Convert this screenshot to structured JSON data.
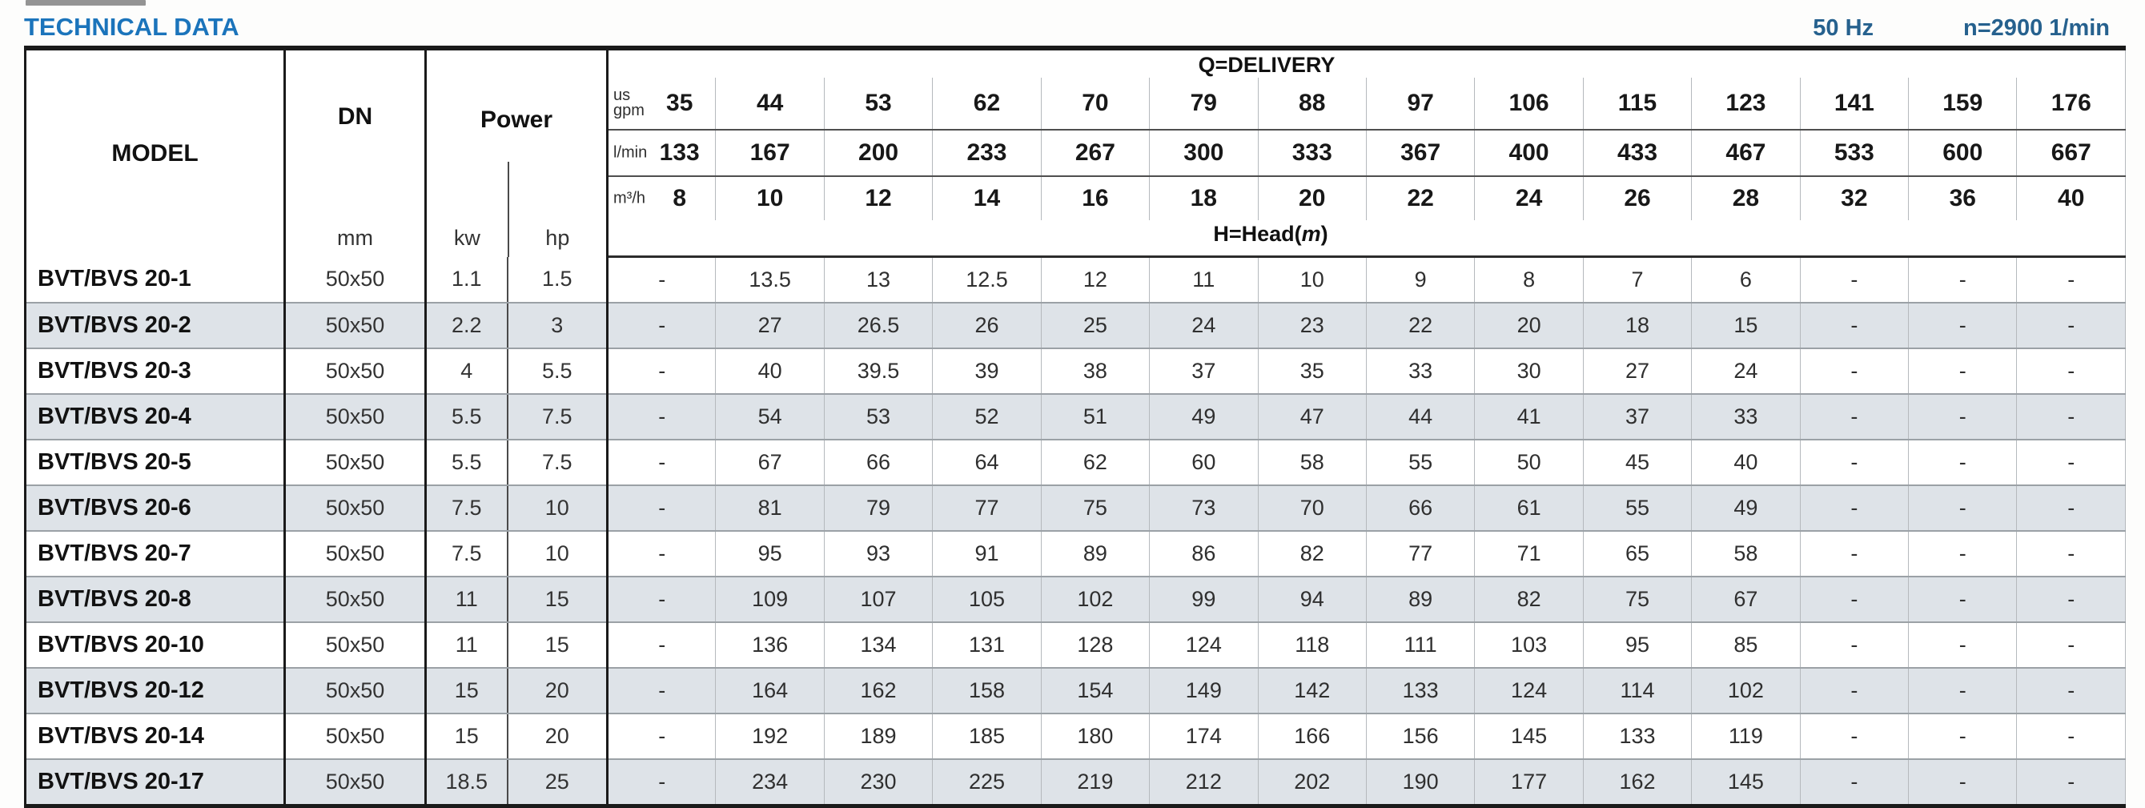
{
  "colors": {
    "title_accent": "#1b74bb",
    "subtitle_accent": "#26618e",
    "row_stripe": "#dee3e8"
  },
  "header": {
    "title": "TECHNICAL DATA",
    "frequency": "50 Hz",
    "speed": "n=2900 1/min"
  },
  "table": {
    "model_label": "MODEL",
    "dn_label": "DN",
    "dn_unit": "mm",
    "power_label": "Power",
    "power_unit_kw": "kw",
    "power_unit_hp": "hp",
    "delivery_label": "Q=DELIVERY",
    "head_prefix": "H=Head(",
    "head_italic": "m",
    "head_suffix": ")",
    "unit_rows": [
      {
        "key": "us-gpm",
        "unit_top": "us",
        "unit": "gpm",
        "values": [
          "35",
          "44",
          "53",
          "62",
          "70",
          "79",
          "88",
          "97",
          "106",
          "115",
          "123",
          "141",
          "159",
          "176"
        ]
      },
      {
        "key": "l-min",
        "unit_top": "",
        "unit": "l/min",
        "values": [
          "133",
          "167",
          "200",
          "233",
          "267",
          "300",
          "333",
          "367",
          "400",
          "433",
          "467",
          "533",
          "600",
          "667"
        ]
      },
      {
        "key": "m3-h",
        "unit_top": "",
        "unit": "m³/h",
        "values": [
          "8",
          "10",
          "12",
          "14",
          "16",
          "18",
          "20",
          "22",
          "24",
          "26",
          "28",
          "32",
          "36",
          "40"
        ]
      }
    ],
    "rows": [
      {
        "model": "BVT/BVS 20-1",
        "dn": "50x50",
        "kw": "1.1",
        "hp": "1.5",
        "heads": [
          "-",
          "13.5",
          "13",
          "12.5",
          "12",
          "11",
          "10",
          "9",
          "8",
          "7",
          "6",
          "-",
          "-",
          "-"
        ]
      },
      {
        "model": "BVT/BVS 20-2",
        "dn": "50x50",
        "kw": "2.2",
        "hp": "3",
        "heads": [
          "-",
          "27",
          "26.5",
          "26",
          "25",
          "24",
          "23",
          "22",
          "20",
          "18",
          "15",
          "-",
          "-",
          "-"
        ]
      },
      {
        "model": "BVT/BVS 20-3",
        "dn": "50x50",
        "kw": "4",
        "hp": "5.5",
        "heads": [
          "-",
          "40",
          "39.5",
          "39",
          "38",
          "37",
          "35",
          "33",
          "30",
          "27",
          "24",
          "-",
          "-",
          "-"
        ]
      },
      {
        "model": "BVT/BVS 20-4",
        "dn": "50x50",
        "kw": "5.5",
        "hp": "7.5",
        "heads": [
          "-",
          "54",
          "53",
          "52",
          "51",
          "49",
          "47",
          "44",
          "41",
          "37",
          "33",
          "-",
          "-",
          "-"
        ]
      },
      {
        "model": "BVT/BVS 20-5",
        "dn": "50x50",
        "kw": "5.5",
        "hp": "7.5",
        "heads": [
          "-",
          "67",
          "66",
          "64",
          "62",
          "60",
          "58",
          "55",
          "50",
          "45",
          "40",
          "-",
          "-",
          "-"
        ]
      },
      {
        "model": "BVT/BVS 20-6",
        "dn": "50x50",
        "kw": "7.5",
        "hp": "10",
        "heads": [
          "-",
          "81",
          "79",
          "77",
          "75",
          "73",
          "70",
          "66",
          "61",
          "55",
          "49",
          "-",
          "-",
          "-"
        ]
      },
      {
        "model": "BVT/BVS 20-7",
        "dn": "50x50",
        "kw": "7.5",
        "hp": "10",
        "heads": [
          "-",
          "95",
          "93",
          "91",
          "89",
          "86",
          "82",
          "77",
          "71",
          "65",
          "58",
          "-",
          "-",
          "-"
        ]
      },
      {
        "model": "BVT/BVS 20-8",
        "dn": "50x50",
        "kw": "11",
        "hp": "15",
        "heads": [
          "-",
          "109",
          "107",
          "105",
          "102",
          "99",
          "94",
          "89",
          "82",
          "75",
          "67",
          "-",
          "-",
          "-"
        ]
      },
      {
        "model": "BVT/BVS 20-10",
        "dn": "50x50",
        "kw": "11",
        "hp": "15",
        "heads": [
          "-",
          "136",
          "134",
          "131",
          "128",
          "124",
          "118",
          "111",
          "103",
          "95",
          "85",
          "-",
          "-",
          "-"
        ]
      },
      {
        "model": "BVT/BVS 20-12",
        "dn": "50x50",
        "kw": "15",
        "hp": "20",
        "heads": [
          "-",
          "164",
          "162",
          "158",
          "154",
          "149",
          "142",
          "133",
          "124",
          "114",
          "102",
          "-",
          "-",
          "-"
        ]
      },
      {
        "model": "BVT/BVS 20-14",
        "dn": "50x50",
        "kw": "15",
        "hp": "20",
        "heads": [
          "-",
          "192",
          "189",
          "185",
          "180",
          "174",
          "166",
          "156",
          "145",
          "133",
          "119",
          "-",
          "-",
          "-"
        ]
      },
      {
        "model": "BVT/BVS 20-17",
        "dn": "50x50",
        "kw": "18.5",
        "hp": "25",
        "heads": [
          "-",
          "234",
          "230",
          "225",
          "219",
          "212",
          "202",
          "190",
          "177",
          "162",
          "145",
          "-",
          "-",
          "-"
        ]
      }
    ]
  }
}
